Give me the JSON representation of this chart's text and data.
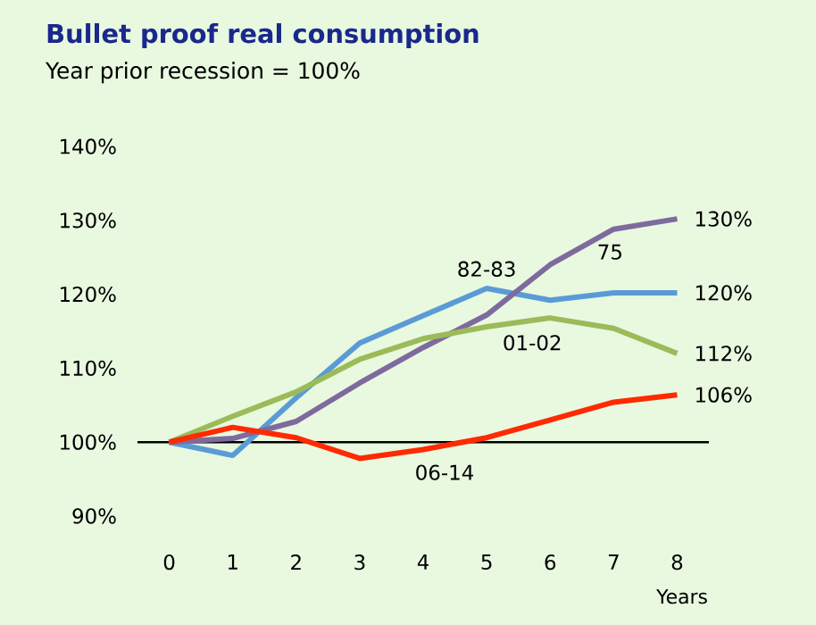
{
  "chart_data": {
    "type": "line",
    "title": "Bullet proof real consumption",
    "subtitle": "Year prior recession  = 100%",
    "xlabel": "Years",
    "categories": [
      "0",
      "1",
      "2",
      "3",
      "4",
      "5",
      "6",
      "7",
      "8"
    ],
    "series": [
      {
        "name": "82-83",
        "color": "#5b9bd5",
        "values": [
          100,
          98.2,
          106,
          113.4,
          117.1,
          120.8,
          119.2,
          120.2,
          120.2
        ],
        "value_labels": [
          null,
          null,
          null,
          null,
          null,
          null,
          null,
          null,
          "120%"
        ]
      },
      {
        "name": "75",
        "color": "#7f6a9e",
        "values": [
          100,
          100.5,
          102.8,
          108,
          112.8,
          117.2,
          124,
          128.8,
          130.2
        ],
        "value_labels": [
          null,
          null,
          null,
          null,
          null,
          null,
          null,
          null,
          "130%"
        ]
      },
      {
        "name": "01-02",
        "color": "#9bbb59",
        "values": [
          100,
          103.5,
          106.8,
          111.2,
          114,
          115.6,
          116.8,
          115.4,
          112
        ],
        "value_labels": [
          null,
          null,
          null,
          null,
          null,
          null,
          null,
          null,
          "112%"
        ]
      },
      {
        "name": "06-14",
        "color": "#ff2a00",
        "values": [
          100,
          102,
          100.6,
          97.8,
          99,
          100.6,
          103,
          105.4,
          106.4
        ],
        "value_labels": [
          null,
          null,
          null,
          null,
          null,
          null,
          null,
          null,
          "106%"
        ]
      }
    ],
    "ylim": [
      90,
      140
    ],
    "yticks": [
      {
        "value": 90,
        "label": "90%"
      },
      {
        "value": 100,
        "label": "100%"
      },
      {
        "value": 110,
        "label": "110%"
      },
      {
        "value": 120,
        "label": "120%"
      },
      {
        "value": 130,
        "label": "130%"
      },
      {
        "value": 140,
        "label": "140%"
      }
    ],
    "ref_lines": [
      {
        "axis": "y",
        "value": 100,
        "color": "#000000"
      }
    ],
    "grid": false,
    "legend": false,
    "marker": "none",
    "line_style": "solid"
  }
}
